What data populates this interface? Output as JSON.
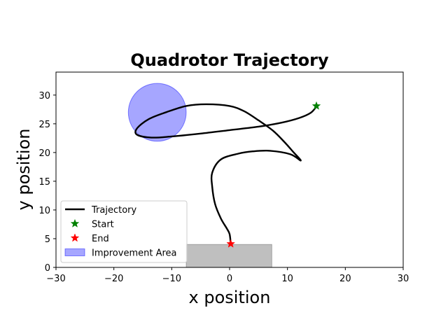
{
  "chart_data": {
    "type": "line",
    "title": "Quadrotor Trajectory",
    "xlabel": "x position",
    "ylabel": "y position",
    "xlim": [
      -30,
      30
    ],
    "ylim": [
      0,
      34
    ],
    "xticks": [
      -30,
      -20,
      -10,
      0,
      10,
      20,
      30
    ],
    "yticks": [
      0,
      5,
      10,
      15,
      20,
      25,
      30
    ],
    "grid": false,
    "legend_position": "lower-left",
    "series": [
      {
        "name": "Trajectory",
        "kind": "line",
        "color": "#000000",
        "points": [
          [
            15.0,
            28.0
          ],
          [
            14.0,
            26.9
          ],
          [
            12.0,
            26.0
          ],
          [
            9.0,
            25.2
          ],
          [
            5.0,
            24.5
          ],
          [
            0.0,
            23.9
          ],
          [
            -5.0,
            23.3
          ],
          [
            -10.0,
            22.8
          ],
          [
            -13.5,
            22.6
          ],
          [
            -16.0,
            23.1
          ],
          [
            -16.0,
            24.2
          ],
          [
            -14.0,
            25.8
          ],
          [
            -11.0,
            27.0
          ],
          [
            -7.5,
            28.1
          ],
          [
            -4.0,
            28.4
          ],
          [
            0.0,
            28.1
          ],
          [
            2.5,
            27.2
          ],
          [
            5.0,
            25.6
          ],
          [
            7.5,
            23.8
          ],
          [
            9.5,
            21.8
          ],
          [
            11.0,
            20.1
          ],
          [
            12.3,
            18.6
          ],
          [
            10.5,
            19.7
          ],
          [
            7.0,
            20.3
          ],
          [
            4.0,
            20.2
          ],
          [
            1.5,
            19.8
          ],
          [
            -1.5,
            18.8
          ],
          [
            -3.0,
            16.5
          ],
          [
            -3.0,
            14.0
          ],
          [
            -2.5,
            11.0
          ],
          [
            -1.5,
            8.5
          ],
          [
            -0.5,
            6.8
          ],
          [
            0.0,
            5.8
          ],
          [
            0.2,
            4.1
          ]
        ]
      },
      {
        "name": "Start",
        "kind": "marker",
        "color": "#008000",
        "points": [
          [
            15.0,
            28.1
          ]
        ]
      },
      {
        "name": "End",
        "kind": "marker",
        "color": "#ff0000",
        "points": [
          [
            0.2,
            4.1
          ]
        ]
      }
    ],
    "regions": [
      {
        "name": "Improvement Area",
        "shape": "circle",
        "center": [
          -12.5,
          27.0
        ],
        "radius": 5.0,
        "color": "#0000ff",
        "alpha": 0.35
      },
      {
        "name": "",
        "shape": "rect",
        "x0": -7.5,
        "x1": 7.3,
        "y0": 0,
        "y1": 4.0,
        "color": "#808080",
        "alpha": 0.5
      }
    ]
  }
}
